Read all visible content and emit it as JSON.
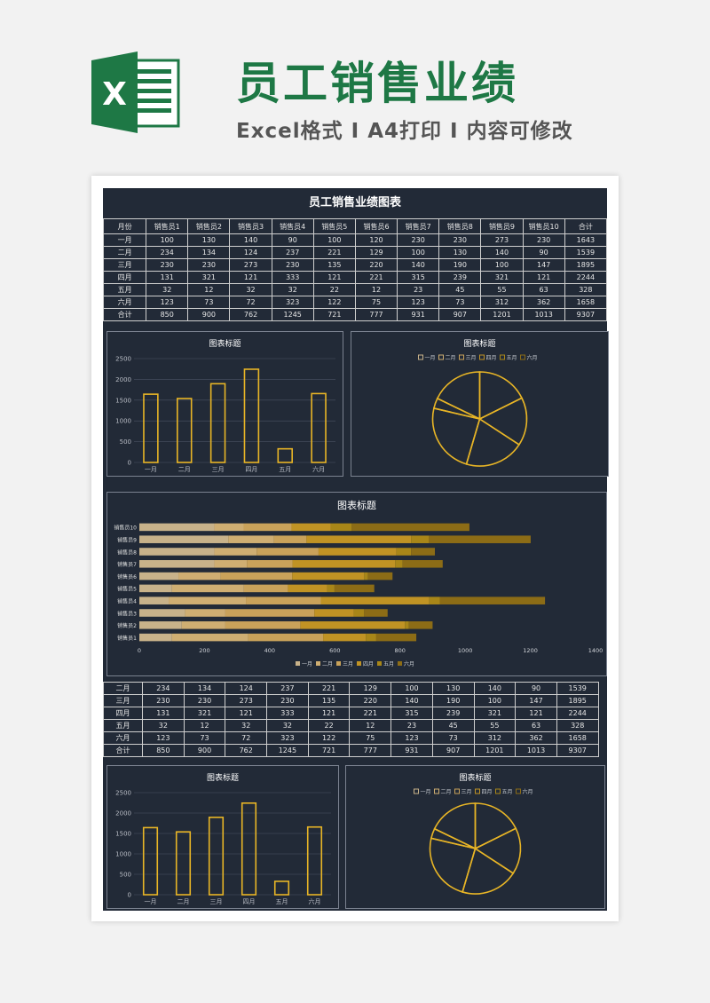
{
  "header": {
    "title": "员工销售业绩",
    "subtitle": "Excel格式 I A4打印 I 内容可修改",
    "logo_letter": "X"
  },
  "table_title": "员工销售业绩图表",
  "table": {
    "headers": [
      "月份",
      "销售员1",
      "销售员2",
      "销售员3",
      "销售员4",
      "销售员5",
      "销售员6",
      "销售员7",
      "销售员8",
      "销售员9",
      "销售员10",
      "合计"
    ],
    "rows": [
      [
        "一月",
        "100",
        "130",
        "140",
        "90",
        "100",
        "120",
        "230",
        "230",
        "273",
        "230",
        "1643"
      ],
      [
        "二月",
        "234",
        "134",
        "124",
        "237",
        "221",
        "129",
        "100",
        "130",
        "140",
        "90",
        "1539"
      ],
      [
        "三月",
        "230",
        "230",
        "273",
        "230",
        "135",
        "220",
        "140",
        "190",
        "100",
        "147",
        "1895"
      ],
      [
        "四月",
        "131",
        "321",
        "121",
        "333",
        "121",
        "221",
        "315",
        "239",
        "321",
        "121",
        "2244"
      ],
      [
        "五月",
        "32",
        "12",
        "32",
        "32",
        "22",
        "12",
        "23",
        "45",
        "55",
        "63",
        "328"
      ],
      [
        "六月",
        "123",
        "73",
        "72",
        "323",
        "122",
        "75",
        "123",
        "73",
        "312",
        "362",
        "1658"
      ],
      [
        "合计",
        "850",
        "900",
        "762",
        "1245",
        "721",
        "777",
        "931",
        "907",
        "1201",
        "1013",
        "9307"
      ]
    ]
  },
  "colors": {
    "background": "#222a37",
    "gold": "#e8b526",
    "months": [
      "#c8b28a",
      "#cfae72",
      "#c9a25a",
      "#c09324",
      "#a88618",
      "#8c6c16"
    ]
  },
  "chart_data": [
    {
      "type": "bar",
      "title": "图表标题",
      "categories": [
        "一月",
        "二月",
        "三月",
        "四月",
        "五月",
        "六月"
      ],
      "values": [
        1643,
        1539,
        1895,
        2244,
        328,
        1658
      ],
      "ylim": [
        0,
        2500
      ],
      "yticks": [
        "0",
        "500",
        "1000",
        "1500",
        "2000",
        "2500"
      ],
      "grid": true
    },
    {
      "type": "pie",
      "title": "图表标题",
      "legend": [
        "一月",
        "二月",
        "三月",
        "四月",
        "五月",
        "六月"
      ],
      "values": [
        1643,
        1539,
        1895,
        2244,
        328,
        1658
      ],
      "legend_position": "top"
    },
    {
      "type": "bar",
      "orientation": "horizontal",
      "stacked": true,
      "title": "图表标题",
      "categories": [
        "销售员1",
        "销售员2",
        "销售员3",
        "销售员4",
        "销售员5",
        "销售员6",
        "销售员7",
        "销售员8",
        "销售员9",
        "销售员10"
      ],
      "series": [
        {
          "name": "一月",
          "values": [
            100,
            130,
            140,
            90,
            100,
            120,
            230,
            230,
            273,
            230
          ]
        },
        {
          "name": "二月",
          "values": [
            234,
            134,
            124,
            237,
            221,
            129,
            100,
            130,
            140,
            90
          ]
        },
        {
          "name": "三月",
          "values": [
            230,
            230,
            273,
            230,
            135,
            220,
            140,
            190,
            100,
            147
          ]
        },
        {
          "name": "四月",
          "values": [
            131,
            321,
            121,
            333,
            121,
            221,
            315,
            239,
            321,
            121
          ]
        },
        {
          "name": "五月",
          "values": [
            32,
            12,
            32,
            32,
            22,
            12,
            23,
            45,
            55,
            63
          ]
        },
        {
          "name": "六月",
          "values": [
            123,
            73,
            72,
            323,
            122,
            75,
            123,
            73,
            312,
            362
          ]
        }
      ],
      "xlim": [
        0,
        1400
      ],
      "xticks": [
        "0",
        "200",
        "400",
        "600",
        "800",
        "1000",
        "1200",
        "1400"
      ],
      "legend_position": "bottom"
    },
    {
      "type": "bar",
      "title": "图表标题",
      "categories": [
        "一月",
        "二月",
        "三月",
        "四月",
        "五月",
        "六月"
      ],
      "values": [
        1643,
        1539,
        1895,
        2244,
        328,
        1658
      ],
      "ylim": [
        0,
        2500
      ],
      "yticks": [
        "0",
        "500",
        "1000",
        "1500",
        "2000",
        "2500"
      ],
      "grid": true
    },
    {
      "type": "pie",
      "title": "图表标题",
      "legend": [
        "一月",
        "二月",
        "三月",
        "四月",
        "五月",
        "六月"
      ],
      "values": [
        1643,
        1539,
        1895,
        2244,
        328,
        1658
      ],
      "legend_position": "top"
    }
  ]
}
